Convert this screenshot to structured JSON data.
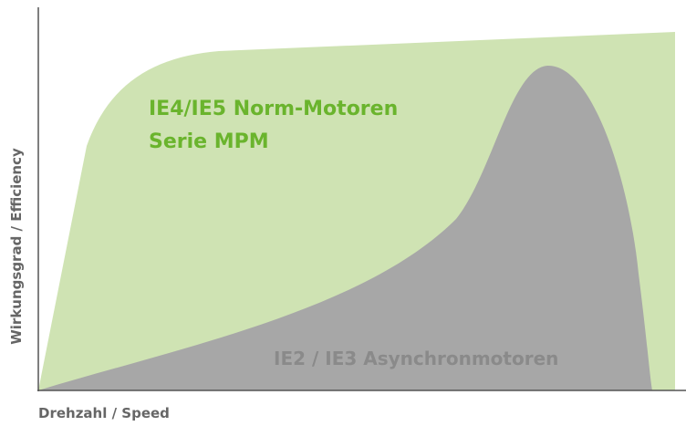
{
  "chart_data": {
    "type": "area",
    "x_label": "Drehzahl / Speed",
    "y_label": "Wirkungsgrad / Efficiency",
    "annotations": [
      {
        "lines": [
          "IE4/IE5 Norm-Motoren",
          "Serie MPM"
        ]
      },
      {
        "lines": [
          "IE2 / IE3 Asynchronmotoren"
        ]
      }
    ]
  }
}
